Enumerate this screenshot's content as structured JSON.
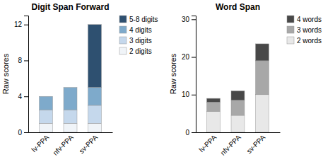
{
  "chart_data": [
    {
      "type": "bar",
      "stacked": true,
      "title": "Digit Span Forward",
      "categories": [
        "lv-PPA",
        "nfv-PPA",
        "sv-PPA"
      ],
      "ylabel": "Raw scores",
      "ylim": [
        0,
        13
      ],
      "yticks": [
        0,
        4,
        8,
        12
      ],
      "legend": "right",
      "series": [
        {
          "name": "2 digits",
          "color": "#f0f4f8",
          "values": [
            1.0,
            1.0,
            1.0
          ]
        },
        {
          "name": "3 digits",
          "color": "#c5d8ec",
          "values": [
            1.5,
            1.5,
            2.0
          ]
        },
        {
          "name": "4 digits",
          "color": "#7eaacb",
          "values": [
            1.5,
            2.5,
            2.0
          ]
        },
        {
          "name": "5-8 digits",
          "color": "#2e5070",
          "values": [
            0.0,
            0.0,
            7.0
          ]
        }
      ]
    },
    {
      "type": "bar",
      "stacked": true,
      "title": "Word Span",
      "categories": [
        "lv-PPA",
        "nfv-PPA",
        "sv-PPA"
      ],
      "ylabel": "Raw scores",
      "ylim": [
        0,
        31
      ],
      "yticks": [
        0,
        10,
        20,
        30
      ],
      "legend": "right",
      "series": [
        {
          "name": "2 words",
          "color": "#e8e8e8",
          "values": [
            5.5,
            4.5,
            10.0
          ]
        },
        {
          "name": "3 words",
          "color": "#a8a8a8",
          "values": [
            2.5,
            4.0,
            9.0
          ]
        },
        {
          "name": "4 words",
          "color": "#484848",
          "values": [
            1.0,
            2.5,
            4.5
          ]
        }
      ]
    }
  ]
}
